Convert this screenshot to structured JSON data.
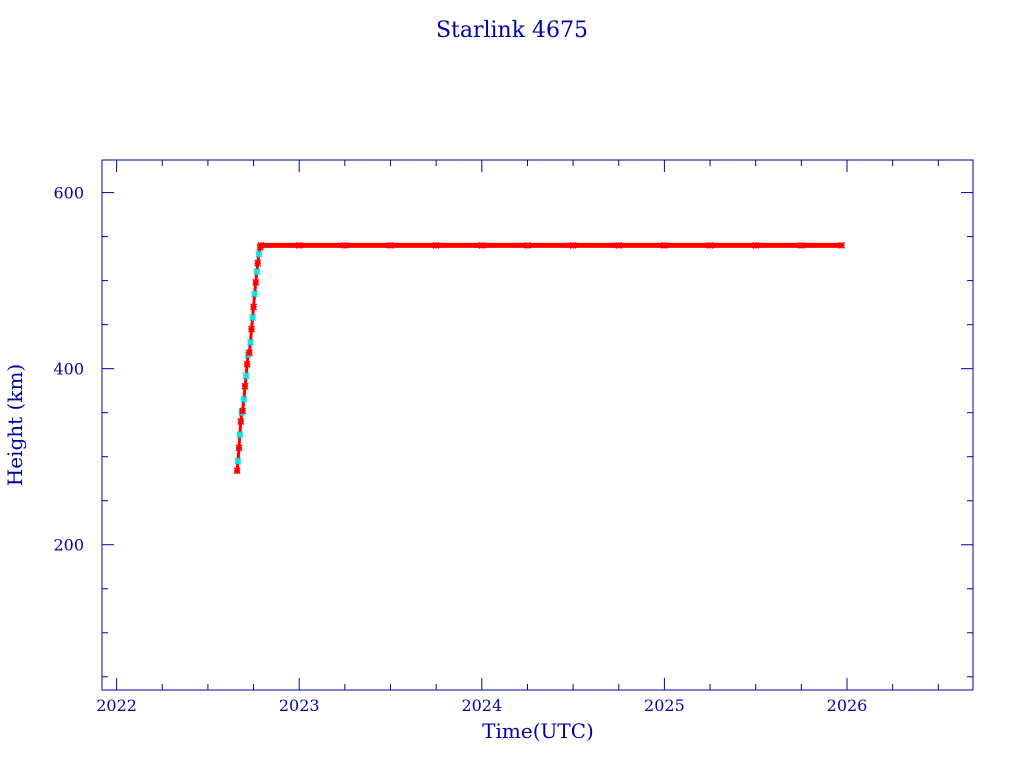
{
  "chart_data": {
    "type": "scatter",
    "title": "Starlink 4675",
    "xlabel": "Time(UTC)",
    "ylabel": "Height (km)",
    "xlim": [
      2021.92,
      2026.69
    ],
    "ylim": [
      35,
      637
    ],
    "x_ticks": [
      2022,
      2023,
      2024,
      2025,
      2026
    ],
    "x_tick_labels": [
      "2022",
      "2023",
      "2024",
      "2025",
      "2026"
    ],
    "y_ticks": [
      200,
      400,
      600
    ],
    "y_tick_labels": [
      "200",
      "400",
      "600"
    ],
    "grid": false,
    "axis_color": "#0000a8",
    "series": [
      {
        "marker_colors": [
          "#ff0000",
          "#00e8e8"
        ],
        "points": [
          [
            2022.66,
            284
          ],
          [
            2022.665,
            295
          ],
          [
            2022.67,
            310
          ],
          [
            2022.675,
            325
          ],
          [
            2022.68,
            340
          ],
          [
            2022.685,
            350
          ],
          [
            2022.69,
            352
          ],
          [
            2022.697,
            365
          ],
          [
            2022.703,
            380
          ],
          [
            2022.709,
            392
          ],
          [
            2022.715,
            405
          ],
          [
            2022.72,
            416
          ],
          [
            2022.727,
            418
          ],
          [
            2022.733,
            430
          ],
          [
            2022.739,
            445
          ],
          [
            2022.745,
            458
          ],
          [
            2022.75,
            470
          ],
          [
            2022.756,
            485
          ],
          [
            2022.762,
            498
          ],
          [
            2022.768,
            510
          ],
          [
            2022.773,
            520
          ],
          [
            2022.779,
            530
          ],
          [
            2022.786,
            538
          ]
        ]
      },
      {
        "marker_colors": [
          "#ff0000"
        ],
        "points": [
          [
            2022.79,
            540
          ],
          [
            2023.0,
            540
          ],
          [
            2023.25,
            540
          ],
          [
            2023.5,
            540
          ],
          [
            2023.75,
            540
          ],
          [
            2024.0,
            540
          ],
          [
            2024.25,
            540
          ],
          [
            2024.5,
            540
          ],
          [
            2024.75,
            540
          ],
          [
            2025.0,
            540
          ],
          [
            2025.25,
            540
          ],
          [
            2025.5,
            540
          ],
          [
            2025.75,
            540
          ],
          [
            2025.97,
            540
          ]
        ]
      }
    ]
  }
}
